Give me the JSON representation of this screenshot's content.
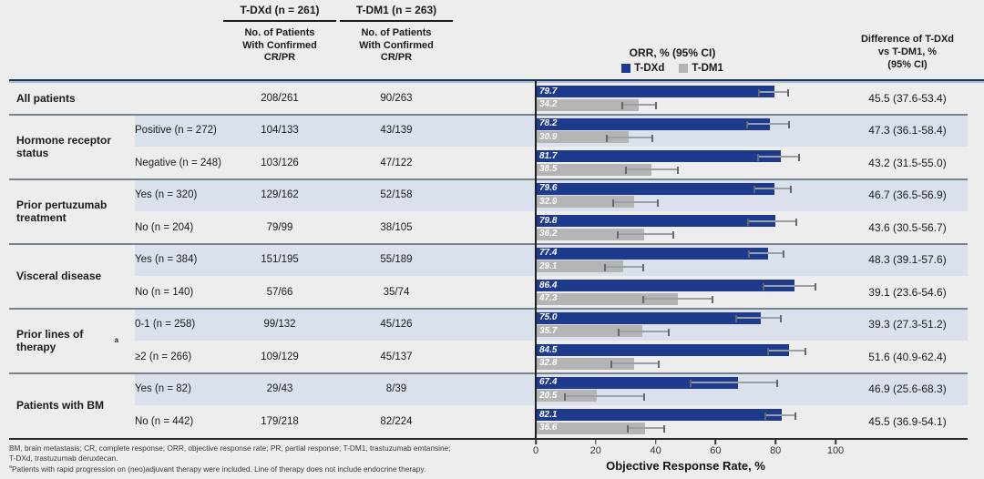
{
  "header": {
    "tdxd": "T-DXd (n = 261)",
    "tdm1": "T-DM1 (n = 263)",
    "patients_sub": [
      "No. of Patients",
      "With Confirmed",
      "CR/PR"
    ],
    "orr_title": "ORR, % (95% CI)",
    "diff_title_lines": [
      "Difference of T-DXd",
      "vs T-DM1, %",
      "(95% CI)"
    ]
  },
  "colors": {
    "tdxd_bar": "#1e3a8c",
    "tdm1_bar": "#b4b4b4",
    "row_band": "#dbe1ec",
    "header_rule": "#17365d",
    "group_separator": "#77828e",
    "axis_line": "#1f1f1f",
    "whisker": "#9aa0a8",
    "whisker_cap": "#63686e"
  },
  "chart_data": {
    "type": "bar",
    "orientation": "horizontal",
    "title": "ORR, % (95% CI)",
    "xlabel": "Objective Response Rate, %",
    "xlim": [
      0,
      100
    ],
    "xticks": [
      0,
      20,
      40,
      60,
      80,
      100
    ],
    "grid": false,
    "legend": [
      "T-DXd",
      "T-DM1"
    ],
    "legend_position": "top",
    "groups": [
      {
        "label": "All patients",
        "rows": [
          {
            "subgroup": "",
            "tdxd_cr_pr": "208/261",
            "tdm1_cr_pr": "90/263",
            "tdxd_orr": 79.7,
            "tdxd_ci": [
              74.3,
              84.4
            ],
            "tdm1_orr": 34.2,
            "tdm1_ci": [
              28.5,
              40.3
            ],
            "difference": "45.5 (37.6-53.4)",
            "shaded": false
          }
        ]
      },
      {
        "label": "Hormone receptor status",
        "rows": [
          {
            "subgroup": "Positive (n = 272)",
            "tdxd_cr_pr": "104/133",
            "tdm1_cr_pr": "43/139",
            "tdxd_orr": 78.2,
            "tdxd_ci": [
              70.2,
              84.9
            ],
            "tdm1_orr": 30.9,
            "tdm1_ci": [
              23.4,
              39.3
            ],
            "difference": "47.3 (36.1-58.4)",
            "shaded": true
          },
          {
            "subgroup": "Negative (n = 248)",
            "tdxd_cr_pr": "103/126",
            "tdm1_cr_pr": "47/122",
            "tdxd_orr": 81.7,
            "tdxd_ci": [
              73.9,
              88.1
            ],
            "tdm1_orr": 38.5,
            "tdm1_ci": [
              29.9,
              47.8
            ],
            "difference": "43.2 (31.5-55.0)",
            "shaded": false
          }
        ]
      },
      {
        "label": "Prior pertuzumab treatment",
        "rows": [
          {
            "subgroup": "Yes (n = 320)",
            "tdxd_cr_pr": "129/162",
            "tdm1_cr_pr": "52/158",
            "tdxd_orr": 79.6,
            "tdxd_ci": [
              72.6,
              85.5
            ],
            "tdm1_orr": 32.9,
            "tdm1_ci": [
              25.6,
              40.9
            ],
            "difference": "46.7 (36.5-56.9)",
            "shaded": true
          },
          {
            "subgroup": "No (n = 204)",
            "tdxd_cr_pr": "79/99",
            "tdm1_cr_pr": "38/105",
            "tdxd_orr": 79.8,
            "tdxd_ci": [
              70.5,
              87.2
            ],
            "tdm1_orr": 36.2,
            "tdm1_ci": [
              27.0,
              46.2
            ],
            "difference": "43.6 (30.5-56.7)",
            "shaded": false
          }
        ]
      },
      {
        "label": "Visceral disease",
        "rows": [
          {
            "subgroup": "Yes (n = 384)",
            "tdxd_cr_pr": "151/195",
            "tdm1_cr_pr": "55/189",
            "tdxd_orr": 77.4,
            "tdxd_ci": [
              70.9,
              83.1
            ],
            "tdm1_orr": 29.1,
            "tdm1_ci": [
              22.7,
              36.1
            ],
            "difference": "48.3 (39.1-57.6)",
            "shaded": true
          },
          {
            "subgroup": "No (n = 140)",
            "tdxd_cr_pr": "57/66",
            "tdm1_cr_pr": "35/74",
            "tdxd_orr": 86.4,
            "tdxd_ci": [
              75.7,
              93.6
            ],
            "tdm1_orr": 47.3,
            "tdm1_ci": [
              35.6,
              59.3
            ],
            "difference": "39.1 (23.6-54.6)",
            "shaded": false
          }
        ]
      },
      {
        "label": "Prior lines of therapy",
        "label_sup": "a",
        "rows": [
          {
            "subgroup": "0-1 (n = 258)",
            "tdxd_cr_pr": "99/132",
            "tdm1_cr_pr": "45/126",
            "tdxd_orr": 75.0,
            "tdxd_ci": [
              66.7,
              82.1
            ],
            "tdm1_orr": 35.7,
            "tdm1_ci": [
              27.4,
              44.7
            ],
            "difference": "39.3 (27.3-51.2)",
            "shaded": true
          },
          {
            "subgroup": "≥2 (n = 266)",
            "tdxd_cr_pr": "109/129",
            "tdm1_cr_pr": "45/137",
            "tdxd_orr": 84.5,
            "tdxd_ci": [
              77.1,
              90.3
            ],
            "tdm1_orr": 32.8,
            "tdm1_ci": [
              25.0,
              41.3
            ],
            "difference": "51.6 (40.9-62.4)",
            "shaded": false
          }
        ]
      },
      {
        "label": "Patients with BM",
        "rows": [
          {
            "subgroup": "Yes (n = 82)",
            "tdxd_cr_pr": "29/43",
            "tdm1_cr_pr": "8/39",
            "tdxd_orr": 67.4,
            "tdxd_ci": [
              51.5,
              80.9
            ],
            "tdm1_orr": 20.5,
            "tdm1_ci": [
              9.3,
              36.5
            ],
            "difference": "46.9 (25.6-68.3)",
            "shaded": true
          },
          {
            "subgroup": "No (n = 442)",
            "tdxd_cr_pr": "179/218",
            "tdm1_cr_pr": "82/224",
            "tdxd_orr": 82.1,
            "tdxd_ci": [
              76.4,
              86.9
            ],
            "tdm1_orr": 36.6,
            "tdm1_ci": [
              30.3,
              43.3
            ],
            "difference": "45.5 (36.9-54.1)",
            "shaded": false
          }
        ]
      }
    ]
  },
  "footnotes": {
    "abbrev_lines": [
      "BM, brain metastasis; CR, complete response; ORR, objective response rate; PR, partial response; T-DM1, trastuzumab emtansine;",
      "T-DXd, trastuzumab deruxtecan."
    ],
    "note_sup": "a",
    "note": "Patients with rapid progression on (neo)adjuvant therapy were included. Line of therapy does not include endocrine therapy."
  }
}
